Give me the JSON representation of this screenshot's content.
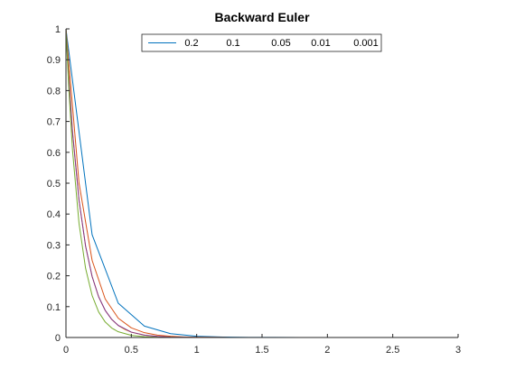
{
  "chart_data": {
    "type": "line",
    "title": "Backward Euler",
    "xlabel": "",
    "ylabel": "",
    "xlim": [
      0,
      3
    ],
    "ylim": [
      0,
      1
    ],
    "x_ticks": [
      "0",
      "0.5",
      "1",
      "1.5",
      "2",
      "2.5",
      "3"
    ],
    "y_ticks": [
      "0",
      "0.1",
      "0.2",
      "0.3",
      "0.4",
      "0.5",
      "0.6",
      "0.7",
      "0.8",
      "0.9",
      "1"
    ],
    "grid": false,
    "legend_position": "top-center",
    "series": [
      {
        "name": "0.2",
        "color": "#0072BD",
        "x": [
          0,
          0.2,
          0.4,
          0.6,
          0.8,
          1.0,
          1.2,
          1.4,
          1.6,
          1.8,
          2.0,
          2.2,
          2.4,
          2.6,
          2.8,
          3.0
        ],
        "y": [
          1,
          0.333,
          0.111,
          0.037,
          0.0123,
          0.0041,
          0.0014,
          0.0005,
          0.0002,
          0.0001,
          0,
          0,
          0,
          0,
          0,
          0
        ]
      },
      {
        "name": "0.1",
        "color": "#D95319",
        "x": [
          0,
          0.1,
          0.2,
          0.3,
          0.4,
          0.5,
          0.6,
          0.7,
          0.8,
          0.9,
          1.0,
          1.2,
          1.5,
          2.0,
          2.5,
          3.0
        ],
        "y": [
          1,
          0.5,
          0.25,
          0.125,
          0.0625,
          0.03125,
          0.0156,
          0.0078,
          0.0039,
          0.002,
          0.001,
          0.0002,
          0,
          0,
          0,
          0
        ]
      },
      {
        "name": "0.05",
        "color": "#EDB120",
        "x": [
          0,
          0.05,
          0.1,
          0.15,
          0.2,
          0.25,
          0.3,
          0.35,
          0.4,
          0.45,
          0.5,
          0.6,
          0.7,
          0.8,
          0.9,
          1.0,
          1.5,
          2.0,
          3.0
        ],
        "y": [
          1,
          0.667,
          0.444,
          0.296,
          0.198,
          0.132,
          0.0878,
          0.0585,
          0.039,
          0.026,
          0.0173,
          0.0077,
          0.0034,
          0.0015,
          0.0007,
          0.0003,
          0,
          0,
          0
        ]
      },
      {
        "name": "0.01",
        "color": "#7E2F8E",
        "x": [
          0,
          0.02,
          0.05,
          0.1,
          0.15,
          0.2,
          0.25,
          0.3,
          0.35,
          0.4,
          0.5,
          0.6,
          0.7,
          0.8,
          1.0,
          1.5,
          2.0,
          3.0
        ],
        "y": [
          1,
          0.8495,
          0.6669,
          0.4448,
          0.2966,
          0.1978,
          0.1319,
          0.088,
          0.0587,
          0.0391,
          0.0174,
          0.0077,
          0.0035,
          0.0015,
          0.0003,
          0,
          0,
          0
        ]
      },
      {
        "name": "0.001",
        "color": "#77AC30",
        "x": [
          0,
          0.02,
          0.05,
          0.1,
          0.15,
          0.2,
          0.25,
          0.3,
          0.35,
          0.4,
          0.5,
          0.6,
          0.7,
          0.8,
          1.0,
          1.5,
          2.0,
          3.0
        ],
        "y": [
          1,
          0.8202,
          0.6076,
          0.3692,
          0.2243,
          0.1363,
          0.0828,
          0.0503,
          0.0306,
          0.0186,
          0.0069,
          0.0025,
          0.0009,
          0.0003,
          0,
          0,
          0,
          0
        ]
      }
    ]
  }
}
